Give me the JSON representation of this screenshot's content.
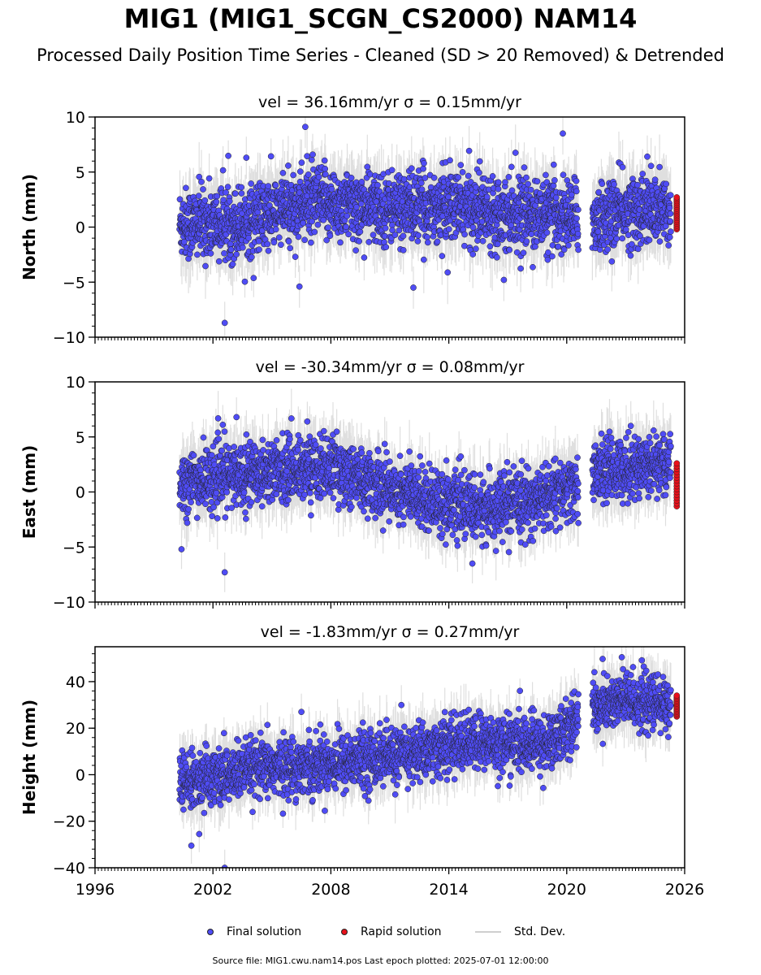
{
  "header": {
    "title": "MIG1 (MIG1_SCGN_CS2000) NAM14",
    "subtitle": "Processed Daily Position Time Series - Cleaned (SD > 20 Removed) & Detrended"
  },
  "colors": {
    "final": "#4f4cf5",
    "rapid": "#e8111b",
    "sd": "#b8b8b8",
    "edge": "#222222"
  },
  "legend": {
    "final": "Final solution",
    "rapid": "Rapid solution",
    "sd": "Std. Dev."
  },
  "footer": {
    "text": "Source file: MIG1.cwu.nam14.pos  Last epoch plotted: 2025-07-01 12:00:00"
  },
  "chart_data": [
    {
      "type": "scatter",
      "title": "vel = 36.16mm/yr   σ = 0.15mm/yr",
      "ylabel": "North (mm)",
      "xlim": [
        1996,
        2026
      ],
      "ylim": [
        -10,
        10
      ],
      "yticks": [
        10,
        5,
        0,
        -5,
        -10
      ],
      "yticklabels": [
        "10",
        "5",
        "0",
        "−5",
        "−10"
      ],
      "xticks": [
        1996,
        2002,
        2008,
        2014,
        2020,
        2026
      ],
      "xticklabels": [
        "1996",
        "2002",
        "2008",
        "2014",
        "2020",
        "2026"
      ],
      "data_span": [
        2000.3,
        2025.3
      ],
      "gaps": [
        [
          2020.6,
          2021.3
        ]
      ],
      "trend": [
        [
          2000.3,
          0.3
        ],
        [
          2003.5,
          0.4
        ],
        [
          2007,
          2.3
        ],
        [
          2010,
          1.7
        ],
        [
          2014,
          1.9
        ],
        [
          2018,
          1.2
        ],
        [
          2020.5,
          1.0
        ],
        [
          2021.3,
          0.6
        ],
        [
          2023,
          1.5
        ],
        [
          2025.3,
          1.4
        ]
      ],
      "scatter_sd": 1.6,
      "error_sd": 1.6,
      "outliers": [
        [
          2006.7,
          9.1
        ],
        [
          2019.8,
          8.5
        ],
        [
          2002.6,
          -8.7
        ],
        [
          2006.4,
          -5.4
        ],
        [
          2012.2,
          -5.5
        ],
        [
          2016.8,
          -4.8
        ],
        [
          2003.7,
          6.3
        ],
        [
          2024.1,
          6.4
        ]
      ],
      "rapid": {
        "x": 2025.6,
        "range": [
          -0.2,
          2.7
        ],
        "count": 18
      }
    },
    {
      "type": "scatter",
      "title": "vel = -30.34mm/yr   σ = 0.08mm/yr",
      "ylabel": "East (mm)",
      "xlim": [
        1996,
        2026
      ],
      "ylim": [
        -10,
        10
      ],
      "yticks": [
        10,
        5,
        0,
        -5,
        -10
      ],
      "yticklabels": [
        "10",
        "5",
        "0",
        "−5",
        "−10"
      ],
      "xticks": [
        1996,
        2002,
        2008,
        2014,
        2020,
        2026
      ],
      "xticklabels": [
        "1996",
        "2002",
        "2008",
        "2014",
        "2020",
        "2026"
      ],
      "data_span": [
        2000.3,
        2025.3
      ],
      "gaps": [
        [
          2020.6,
          2021.3
        ]
      ],
      "trend": [
        [
          2000.3,
          0.8
        ],
        [
          2004,
          1.8
        ],
        [
          2008,
          2.3
        ],
        [
          2010,
          0.8
        ],
        [
          2013,
          -0.6
        ],
        [
          2015.5,
          -1.6
        ],
        [
          2018,
          -1.0
        ],
        [
          2020.5,
          0.4
        ],
        [
          2021.3,
          1.8
        ],
        [
          2023,
          2.2
        ],
        [
          2025.3,
          2.8
        ]
      ],
      "scatter_sd": 1.4,
      "error_sd": 1.5,
      "outliers": [
        [
          2002.6,
          -7.3
        ],
        [
          2003.2,
          6.8
        ],
        [
          2006.8,
          6.4
        ],
        [
          2000.4,
          -5.2
        ],
        [
          2015.2,
          -6.5
        ],
        [
          2002.5,
          6.1
        ]
      ],
      "rapid": {
        "x": 2025.6,
        "range": [
          -1.3,
          2.6
        ],
        "count": 16
      }
    },
    {
      "type": "scatter",
      "title": "vel = -1.83mm/yr   σ = 0.27mm/yr",
      "ylabel": "Height (mm)",
      "xlim": [
        1996,
        2026
      ],
      "ylim": [
        -40,
        55
      ],
      "yticks": [
        40,
        20,
        0,
        -20,
        -40
      ],
      "yticklabels": [
        "40",
        "20",
        "0",
        "−20",
        "−40"
      ],
      "xticks": [
        1996,
        2002,
        2008,
        2014,
        2020,
        2026
      ],
      "xticklabels": [
        "1996",
        "2002",
        "2008",
        "2014",
        "2020",
        "2026"
      ],
      "data_span": [
        2000.3,
        2025.3
      ],
      "gaps": [
        [
          2020.6,
          2021.3
        ]
      ],
      "trend": [
        [
          2000.3,
          -4
        ],
        [
          2004,
          2
        ],
        [
          2008,
          5
        ],
        [
          2012,
          9
        ],
        [
          2015,
          14
        ],
        [
          2019,
          13
        ],
        [
          2020.5,
          24
        ],
        [
          2021.3,
          29
        ],
        [
          2023,
          32
        ],
        [
          2025.3,
          30
        ]
      ],
      "scatter_sd": 6.0,
      "error_sd": 6.5,
      "outliers": [
        [
          2000.9,
          -30.5
        ],
        [
          2001.3,
          -25.5
        ],
        [
          2002.6,
          -40
        ],
        [
          2022.8,
          50.5
        ],
        [
          2006.5,
          27
        ]
      ],
      "rapid": {
        "x": 2025.6,
        "range": [
          25,
          34
        ],
        "count": 14
      }
    }
  ]
}
